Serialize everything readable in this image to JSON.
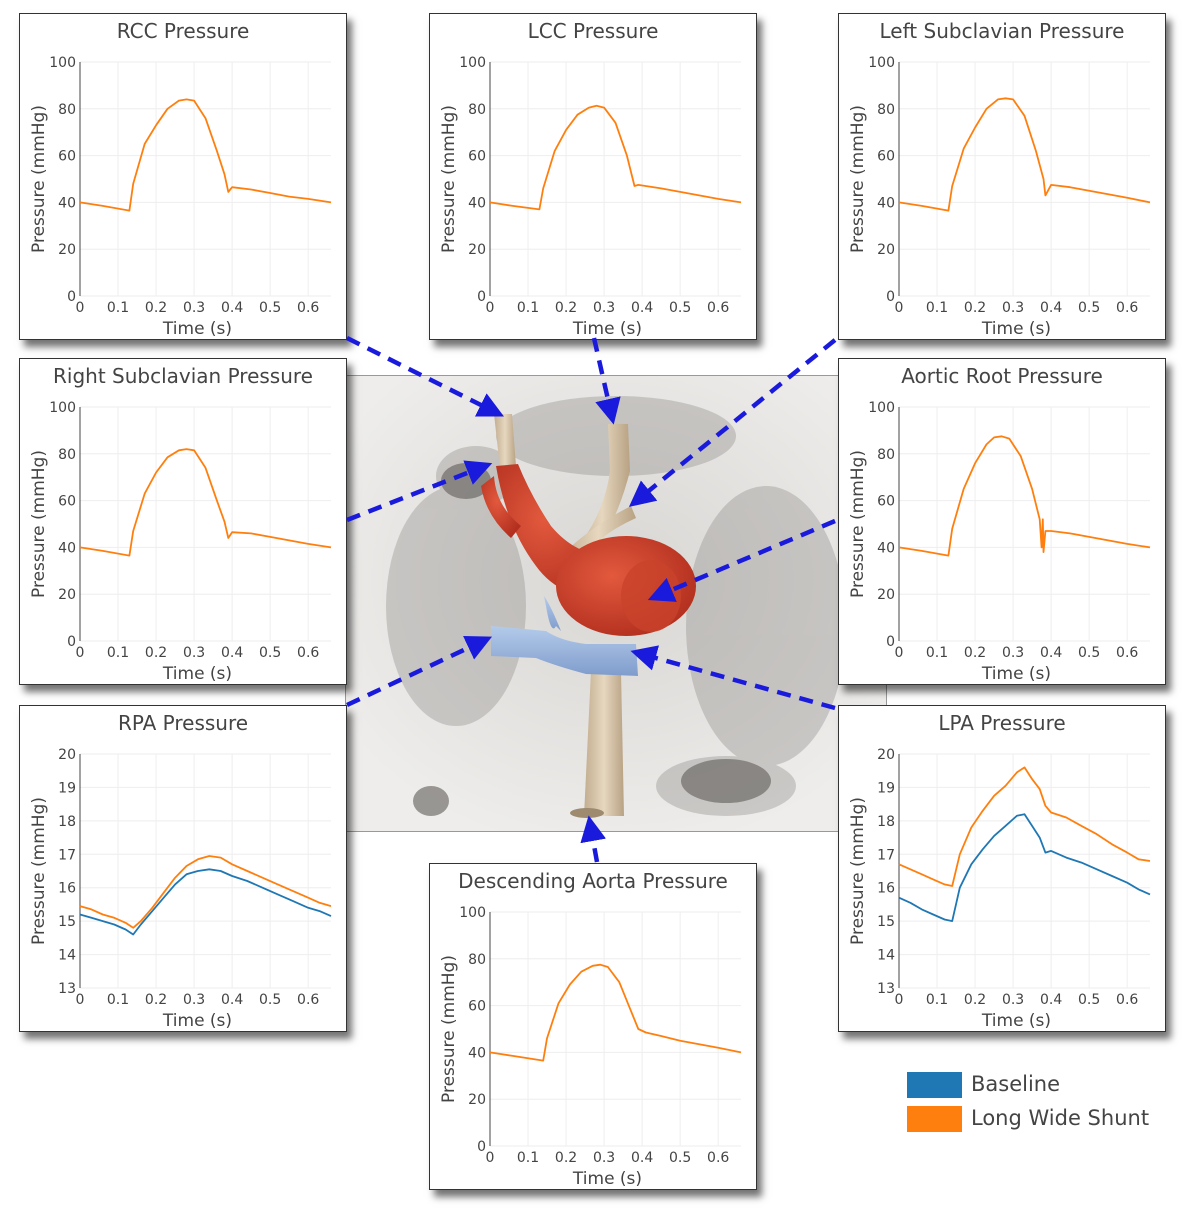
{
  "chart_data": [
    {
      "id": "rcc",
      "type": "line",
      "title": "RCC Pressure",
      "xlabel": "Time (s)",
      "ylabel": "Pressure (mmHg)",
      "xlim": [
        0,
        0.66
      ],
      "ylim": [
        0,
        100
      ],
      "xticks": [
        "0",
        "0.1",
        "0.2",
        "0.3",
        "0.4",
        "0.5",
        "0.6"
      ],
      "yticks": [
        "0",
        "20",
        "40",
        "60",
        "80",
        "100"
      ],
      "series": [
        {
          "name": "Long Wide Shunt",
          "color": "#ff7f0e",
          "x": [
            0,
            0.06,
            0.13,
            0.14,
            0.17,
            0.2,
            0.23,
            0.26,
            0.28,
            0.3,
            0.33,
            0.36,
            0.38,
            0.39,
            0.4,
            0.45,
            0.5,
            0.55,
            0.6,
            0.66
          ],
          "y": [
            40,
            38.5,
            36.5,
            48,
            65,
            73,
            80,
            83.5,
            84,
            83.5,
            76,
            62,
            52,
            44.5,
            46.5,
            45.5,
            44,
            42.5,
            41.5,
            40
          ]
        }
      ]
    },
    {
      "id": "lcc",
      "type": "line",
      "title": "LCC Pressure",
      "xlabel": "Time (s)",
      "ylabel": "Pressure (mmHg)",
      "xlim": [
        0,
        0.66
      ],
      "ylim": [
        0,
        100
      ],
      "xticks": [
        "0",
        "0.1",
        "0.2",
        "0.3",
        "0.4",
        "0.5",
        "0.6"
      ],
      "yticks": [
        "0",
        "20",
        "40",
        "60",
        "80",
        "100"
      ],
      "series": [
        {
          "name": "Long Wide Shunt",
          "color": "#ff7f0e",
          "x": [
            0,
            0.06,
            0.13,
            0.14,
            0.17,
            0.2,
            0.23,
            0.26,
            0.28,
            0.3,
            0.33,
            0.36,
            0.38,
            0.39,
            0.45,
            0.5,
            0.55,
            0.6,
            0.66
          ],
          "y": [
            40,
            38.5,
            37,
            46,
            62,
            71,
            77.5,
            80.5,
            81.3,
            80.5,
            74,
            60,
            47,
            47.5,
            46,
            44.5,
            43,
            41.5,
            40
          ]
        }
      ]
    },
    {
      "id": "lsub",
      "type": "line",
      "title": "Left Subclavian Pressure",
      "xlabel": "Time (s)",
      "ylabel": "Pressure (mmHg)",
      "xlim": [
        0,
        0.66
      ],
      "ylim": [
        0,
        100
      ],
      "xticks": [
        "0",
        "0.1",
        "0.2",
        "0.3",
        "0.4",
        "0.5",
        "0.6"
      ],
      "yticks": [
        "0",
        "20",
        "40",
        "60",
        "80",
        "100"
      ],
      "series": [
        {
          "name": "Long Wide Shunt",
          "color": "#ff7f0e",
          "x": [
            0,
            0.06,
            0.13,
            0.14,
            0.17,
            0.2,
            0.23,
            0.26,
            0.28,
            0.3,
            0.33,
            0.36,
            0.38,
            0.385,
            0.4,
            0.45,
            0.5,
            0.55,
            0.6,
            0.66
          ],
          "y": [
            40,
            38.5,
            36.5,
            47,
            63,
            72,
            80,
            84,
            84.5,
            84,
            77,
            62,
            50,
            43,
            47.5,
            46.5,
            45,
            43.5,
            42,
            40
          ]
        }
      ]
    },
    {
      "id": "rsub",
      "type": "line",
      "title": "Right Subclavian Pressure",
      "xlabel": "Time (s)",
      "ylabel": "Pressure (mmHg)",
      "xlim": [
        0,
        0.66
      ],
      "ylim": [
        0,
        100
      ],
      "xticks": [
        "0",
        "0.1",
        "0.2",
        "0.3",
        "0.4",
        "0.5",
        "0.6"
      ],
      "yticks": [
        "0",
        "20",
        "40",
        "60",
        "80",
        "100"
      ],
      "series": [
        {
          "name": "Long Wide Shunt",
          "color": "#ff7f0e",
          "x": [
            0,
            0.06,
            0.13,
            0.14,
            0.17,
            0.2,
            0.23,
            0.26,
            0.28,
            0.3,
            0.33,
            0.36,
            0.38,
            0.39,
            0.4,
            0.45,
            0.5,
            0.55,
            0.6,
            0.66
          ],
          "y": [
            40,
            38.5,
            36.5,
            47,
            63,
            72,
            78.5,
            81.5,
            82,
            81.5,
            74,
            60,
            51,
            44,
            46.5,
            46,
            44.5,
            43,
            41.5,
            40
          ]
        }
      ]
    },
    {
      "id": "aortic",
      "type": "line",
      "title": "Aortic Root Pressure",
      "xlabel": "Time (s)",
      "ylabel": "Pressure (mmHg)",
      "xlim": [
        0,
        0.66
      ],
      "ylim": [
        0,
        100
      ],
      "xticks": [
        "0",
        "0.1",
        "0.2",
        "0.3",
        "0.4",
        "0.5",
        "0.6"
      ],
      "yticks": [
        "0",
        "20",
        "40",
        "60",
        "80",
        "100"
      ],
      "series": [
        {
          "name": "Long Wide Shunt",
          "color": "#ff7f0e",
          "x": [
            0,
            0.06,
            0.13,
            0.14,
            0.17,
            0.2,
            0.23,
            0.25,
            0.27,
            0.29,
            0.32,
            0.35,
            0.37,
            0.375,
            0.378,
            0.38,
            0.385,
            0.4,
            0.45,
            0.5,
            0.55,
            0.6,
            0.66
          ],
          "y": [
            40,
            38.5,
            36.5,
            48,
            65,
            76,
            84,
            87,
            87.5,
            86.5,
            79,
            65,
            52,
            40,
            52,
            38,
            47,
            47,
            46,
            44.5,
            43,
            41.5,
            40
          ]
        }
      ]
    },
    {
      "id": "rpa",
      "type": "line",
      "title": "RPA Pressure",
      "xlabel": "Time (s)",
      "ylabel": "Pressure (mmHg)",
      "xlim": [
        0,
        0.66
      ],
      "ylim": [
        13,
        20
      ],
      "xticks": [
        "0",
        "0.1",
        "0.2",
        "0.3",
        "0.4",
        "0.5",
        "0.6"
      ],
      "yticks": [
        "13",
        "14",
        "15",
        "16",
        "17",
        "18",
        "19",
        "20"
      ],
      "series": [
        {
          "name": "Baseline",
          "color": "#1f77b4",
          "x": [
            0,
            0.03,
            0.06,
            0.09,
            0.12,
            0.14,
            0.16,
            0.19,
            0.22,
            0.25,
            0.28,
            0.31,
            0.34,
            0.37,
            0.4,
            0.44,
            0.48,
            0.52,
            0.56,
            0.6,
            0.63,
            0.66
          ],
          "y": [
            15.2,
            15.1,
            15.0,
            14.9,
            14.75,
            14.6,
            14.9,
            15.3,
            15.7,
            16.1,
            16.4,
            16.5,
            16.55,
            16.5,
            16.35,
            16.2,
            16.0,
            15.8,
            15.6,
            15.4,
            15.3,
            15.15
          ]
        },
        {
          "name": "Long Wide Shunt",
          "color": "#ff7f0e",
          "x": [
            0,
            0.03,
            0.06,
            0.09,
            0.12,
            0.14,
            0.16,
            0.19,
            0.22,
            0.25,
            0.28,
            0.31,
            0.34,
            0.37,
            0.4,
            0.44,
            0.48,
            0.52,
            0.56,
            0.6,
            0.63,
            0.66
          ],
          "y": [
            15.45,
            15.35,
            15.2,
            15.1,
            14.95,
            14.8,
            15.0,
            15.4,
            15.85,
            16.3,
            16.65,
            16.85,
            16.95,
            16.9,
            16.7,
            16.5,
            16.3,
            16.1,
            15.9,
            15.7,
            15.55,
            15.45
          ]
        }
      ]
    },
    {
      "id": "lpa",
      "type": "line",
      "title": "LPA Pressure",
      "xlabel": "Time (s)",
      "ylabel": "Pressure (mmHg)",
      "xlim": [
        0,
        0.66
      ],
      "ylim": [
        13,
        20
      ],
      "xticks": [
        "0",
        "0.1",
        "0.2",
        "0.3",
        "0.4",
        "0.5",
        "0.6"
      ],
      "yticks": [
        "13",
        "14",
        "15",
        "16",
        "17",
        "18",
        "19",
        "20"
      ],
      "series": [
        {
          "name": "Baseline",
          "color": "#1f77b4",
          "x": [
            0,
            0.03,
            0.06,
            0.09,
            0.12,
            0.14,
            0.16,
            0.19,
            0.22,
            0.25,
            0.28,
            0.31,
            0.33,
            0.35,
            0.37,
            0.385,
            0.4,
            0.44,
            0.48,
            0.52,
            0.56,
            0.6,
            0.63,
            0.66
          ],
          "y": [
            15.7,
            15.55,
            15.35,
            15.2,
            15.05,
            15.0,
            16.0,
            16.7,
            17.15,
            17.55,
            17.85,
            18.15,
            18.2,
            17.85,
            17.5,
            17.05,
            17.1,
            16.9,
            16.75,
            16.55,
            16.35,
            16.15,
            15.95,
            15.8
          ]
        },
        {
          "name": "Long Wide Shunt",
          "color": "#ff7f0e",
          "x": [
            0,
            0.03,
            0.06,
            0.09,
            0.12,
            0.14,
            0.16,
            0.19,
            0.22,
            0.25,
            0.28,
            0.31,
            0.33,
            0.35,
            0.37,
            0.385,
            0.4,
            0.44,
            0.48,
            0.52,
            0.56,
            0.6,
            0.63,
            0.66
          ],
          "y": [
            16.7,
            16.55,
            16.4,
            16.25,
            16.1,
            16.05,
            17.0,
            17.8,
            18.3,
            18.75,
            19.05,
            19.45,
            19.6,
            19.25,
            18.95,
            18.45,
            18.25,
            18.1,
            17.85,
            17.6,
            17.3,
            17.05,
            16.85,
            16.8
          ]
        }
      ]
    },
    {
      "id": "desc",
      "type": "line",
      "title": "Descending Aorta Pressure",
      "xlabel": "Time (s)",
      "ylabel": "Pressure (mmHg)",
      "xlim": [
        0,
        0.66
      ],
      "ylim": [
        0,
        100
      ],
      "xticks": [
        "0",
        "0.1",
        "0.2",
        "0.3",
        "0.4",
        "0.5",
        "0.6"
      ],
      "yticks": [
        "0",
        "20",
        "40",
        "60",
        "80",
        "100"
      ],
      "series": [
        {
          "name": "Long Wide Shunt",
          "color": "#ff7f0e",
          "x": [
            0,
            0.06,
            0.14,
            0.15,
            0.18,
            0.21,
            0.24,
            0.27,
            0.29,
            0.31,
            0.34,
            0.37,
            0.39,
            0.41,
            0.45,
            0.5,
            0.55,
            0.6,
            0.66
          ],
          "y": [
            40,
            38.5,
            36.5,
            46,
            61,
            69,
            74.5,
            77,
            77.5,
            76.5,
            70,
            58,
            50,
            48.5,
            47,
            45,
            43.5,
            42,
            40
          ]
        }
      ]
    }
  ],
  "legend": {
    "items": [
      {
        "label": "Baseline",
        "color": "#1f77b4"
      },
      {
        "label": "Long Wide Shunt",
        "color": "#ff7f0e"
      }
    ]
  },
  "arrow_color": "#1a1adc"
}
